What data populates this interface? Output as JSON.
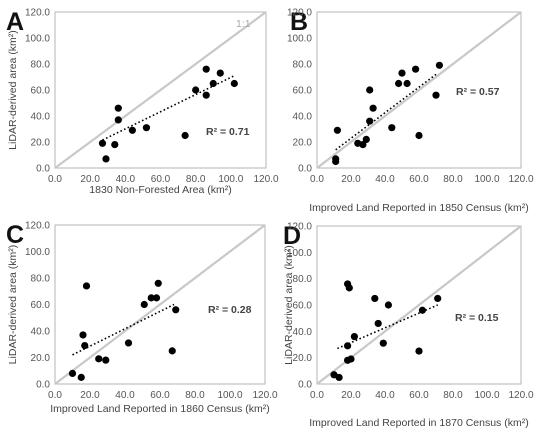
{
  "styles": {
    "point_color": "#000000",
    "trendline_color": "#000000",
    "identity_line_color": "#c8c8c8",
    "frame_color": "#b5b5b5"
  },
  "chart_data": [
    {
      "type": "scatter",
      "panel": "A",
      "xlabel": "1830 Non-Forested Area (km²)",
      "ylabel": "LiDAR-derived area (km²)",
      "xlim": [
        0,
        120
      ],
      "ylim": [
        0,
        120
      ],
      "xticks": [
        "0.0",
        "20.0",
        "40.0",
        "60.0",
        "80.0",
        "100.0",
        "120.0"
      ],
      "yticks": [
        "0.0",
        "20.0",
        "40.0",
        "60.0",
        "80.0",
        "100.0",
        "120.0"
      ],
      "identity_line": true,
      "identity_label": "1:1",
      "r2_label": "R² = 0.71",
      "trendline": {
        "x": [
          27,
          102
        ],
        "y": [
          21.5,
          71
        ]
      },
      "points": [
        {
          "x": 27,
          "y": 19
        },
        {
          "x": 29,
          "y": 7
        },
        {
          "x": 34,
          "y": 18
        },
        {
          "x": 36,
          "y": 46
        },
        {
          "x": 36,
          "y": 37
        },
        {
          "x": 44,
          "y": 29
        },
        {
          "x": 52,
          "y": 31
        },
        {
          "x": 74,
          "y": 25
        },
        {
          "x": 80,
          "y": 60
        },
        {
          "x": 86,
          "y": 76
        },
        {
          "x": 86,
          "y": 56
        },
        {
          "x": 90,
          "y": 65
        },
        {
          "x": 94,
          "y": 73
        },
        {
          "x": 102,
          "y": 65
        }
      ]
    },
    {
      "type": "scatter",
      "panel": "B",
      "xlabel": "Improved Land Reported in 1850 Census (km²)",
      "ylabel": "",
      "xlim": [
        0,
        120
      ],
      "ylim": [
        0,
        120
      ],
      "xticks": [
        "0.0",
        "20.0",
        "40.0",
        "60.0",
        "80.0",
        "100.0",
        "120.0"
      ],
      "yticks": [
        "0.0",
        "20.0",
        "40.0",
        "60.0",
        "80.0",
        "100.0",
        "120.0"
      ],
      "identity_line": true,
      "r2_label": "R² = 0.57",
      "trendline": {
        "x": [
          11,
          70
        ],
        "y": [
          14,
          72
        ]
      },
      "points": [
        {
          "x": 11,
          "y": 7
        },
        {
          "x": 11,
          "y": 5
        },
        {
          "x": 12,
          "y": 29
        },
        {
          "x": 24,
          "y": 19
        },
        {
          "x": 27,
          "y": 18
        },
        {
          "x": 29,
          "y": 22
        },
        {
          "x": 31,
          "y": 36
        },
        {
          "x": 31,
          "y": 60
        },
        {
          "x": 33,
          "y": 46
        },
        {
          "x": 44,
          "y": 31
        },
        {
          "x": 48,
          "y": 65
        },
        {
          "x": 50,
          "y": 73
        },
        {
          "x": 53,
          "y": 65
        },
        {
          "x": 58,
          "y": 76
        },
        {
          "x": 60,
          "y": 25
        },
        {
          "x": 70,
          "y": 56
        },
        {
          "x": 72,
          "y": 79
        }
      ]
    },
    {
      "type": "scatter",
      "panel": "C",
      "xlabel": "Improved Land Reported in 1860 Census (km²)",
      "ylabel": "LiDAR-derived area (km²)",
      "xlim": [
        0,
        120
      ],
      "ylim": [
        0,
        120
      ],
      "xticks": [
        "0.0",
        "20.0",
        "40.0",
        "60.0",
        "80.0",
        "100.0",
        "120.0"
      ],
      "yticks": [
        "0.0",
        "20.0",
        "40.0",
        "60.0",
        "80.0",
        "100.0",
        "120.0"
      ],
      "identity_line": true,
      "r2_label": "R² = 0.28",
      "trendline": {
        "x": [
          10,
          68
        ],
        "y": [
          22,
          60
        ]
      },
      "points": [
        {
          "x": 10,
          "y": 8
        },
        {
          "x": 15,
          "y": 5
        },
        {
          "x": 16,
          "y": 37
        },
        {
          "x": 17,
          "y": 29
        },
        {
          "x": 18,
          "y": 74
        },
        {
          "x": 25,
          "y": 19
        },
        {
          "x": 29,
          "y": 18
        },
        {
          "x": 42,
          "y": 31
        },
        {
          "x": 51,
          "y": 60
        },
        {
          "x": 55,
          "y": 65
        },
        {
          "x": 58,
          "y": 65
        },
        {
          "x": 59,
          "y": 76
        },
        {
          "x": 67,
          "y": 25
        },
        {
          "x": 69,
          "y": 56
        }
      ]
    },
    {
      "type": "scatter",
      "panel": "D",
      "xlabel": "Improved Land Reported in 1870 Census (km²)",
      "ylabel": "LiDAR-derived area (km²)",
      "xlim": [
        0,
        120
      ],
      "ylim": [
        0,
        120
      ],
      "xticks": [
        "0.0",
        "20.0",
        "40.0",
        "60.0",
        "80.0",
        "100.0",
        "120.0"
      ],
      "yticks": [
        "0.0",
        "20.0",
        "40.0",
        "60.0",
        "80.0",
        "100.0",
        "120.0"
      ],
      "identity_line": true,
      "r2_label": "R² = 0.15",
      "trendline": {
        "x": [
          12,
          71
        ],
        "y": [
          27,
          60
        ]
      },
      "points": [
        {
          "x": 10,
          "y": 7
        },
        {
          "x": 13,
          "y": 5
        },
        {
          "x": 18,
          "y": 29
        },
        {
          "x": 18,
          "y": 18
        },
        {
          "x": 18,
          "y": 76
        },
        {
          "x": 19,
          "y": 73
        },
        {
          "x": 20,
          "y": 19
        },
        {
          "x": 22,
          "y": 36
        },
        {
          "x": 34,
          "y": 65
        },
        {
          "x": 36,
          "y": 46
        },
        {
          "x": 39,
          "y": 31
        },
        {
          "x": 42,
          "y": 60
        },
        {
          "x": 60,
          "y": 25
        },
        {
          "x": 62,
          "y": 56
        },
        {
          "x": 71,
          "y": 65
        }
      ]
    }
  ]
}
